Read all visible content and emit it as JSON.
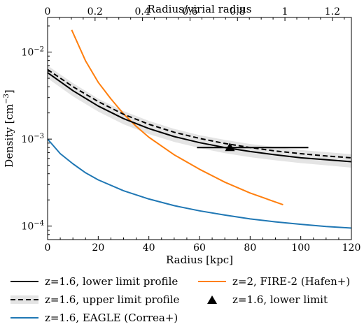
{
  "chart_data": {
    "type": "line",
    "xlabel": "Radius [kpc]",
    "ylabel": "Density [cm",
    "ylabel_sup": "−3",
    "ylabel_end": "]",
    "top_xlabel": "Radius/virial radius",
    "xlim": [
      0,
      120
    ],
    "ylim": [
      7e-05,
      0.025
    ],
    "yscale": "log",
    "top_xlim": [
      0,
      1.28
    ],
    "x_ticks": [
      "0",
      "20",
      "40",
      "60",
      "80",
      "100",
      "120"
    ],
    "top_ticks": [
      "0",
      "0.2",
      "0.4",
      "0.6",
      "0.8",
      "1",
      "1.2"
    ],
    "y_ticks": [
      {
        "base": "10",
        "exp": "−2"
      },
      {
        "base": "10",
        "exp": "−3"
      },
      {
        "base": "10",
        "exp": "−4"
      }
    ],
    "grid": false,
    "legend_position": "below",
    "series": [
      {
        "name": "z=1.6, lower limit profile",
        "style": "solid",
        "color": "#000000",
        "x": [
          0,
          10,
          20,
          30,
          40,
          50,
          60,
          70,
          80,
          90,
          100,
          110,
          120
        ],
        "y": [
          0.0058,
          0.0036,
          0.0024,
          0.00172,
          0.00132,
          0.00107,
          0.00091,
          0.0008,
          0.00072,
          0.00066,
          0.00061,
          0.00058,
          0.00055
        ],
        "band_lower": [
          0.005,
          0.0031,
          0.00207,
          0.00148,
          0.00114,
          0.00093,
          0.00079,
          0.00069,
          0.00062,
          0.00057,
          0.00053,
          0.0005,
          0.00047
        ],
        "band_upper": [
          0.007,
          0.0044,
          0.00292,
          0.0021,
          0.00162,
          0.00131,
          0.00111,
          0.00098,
          0.00088,
          0.00081,
          0.00075,
          0.00071,
          0.00067
        ]
      },
      {
        "name": "z=1.6, upper limit profile",
        "style": "dashed",
        "color": "#000000",
        "x": [
          0,
          10,
          20,
          30,
          40,
          50,
          60,
          70,
          80,
          90,
          100,
          110,
          120
        ],
        "y": [
          0.0063,
          0.004,
          0.0027,
          0.00193,
          0.00148,
          0.0012,
          0.00102,
          0.00089,
          0.0008,
          0.00073,
          0.00068,
          0.00064,
          0.00061
        ]
      },
      {
        "name": "z=1.6, EAGLE (Correa+)",
        "style": "solid",
        "color": "#1f77b4",
        "x": [
          0,
          5,
          10,
          15,
          20,
          30,
          40,
          50,
          60,
          70,
          80,
          90,
          100,
          110,
          120
        ],
        "y": [
          0.001,
          0.00068,
          0.00052,
          0.00041,
          0.00034,
          0.000255,
          0.000205,
          0.000172,
          0.00015,
          0.000134,
          0.000121,
          0.000112,
          0.000105,
          9.9e-05,
          9.5e-05
        ]
      },
      {
        "name": "z=2, FIRE-2 (Hafen+)",
        "style": "solid",
        "color": "#ff7f0e",
        "x": [
          9.5,
          15,
          20,
          25,
          30,
          35,
          40,
          50,
          60,
          70,
          80,
          93
        ],
        "y": [
          0.018,
          0.0079,
          0.0045,
          0.0029,
          0.00195,
          0.0014,
          0.00105,
          0.00066,
          0.00045,
          0.00032,
          0.00024,
          0.000176
        ]
      }
    ],
    "markers": [
      {
        "name": "z=1.6, lower limit",
        "shape": "triangle",
        "color": "#000000",
        "x": 72,
        "y": 0.0008,
        "xerr": [
          59,
          103
        ]
      }
    ]
  }
}
